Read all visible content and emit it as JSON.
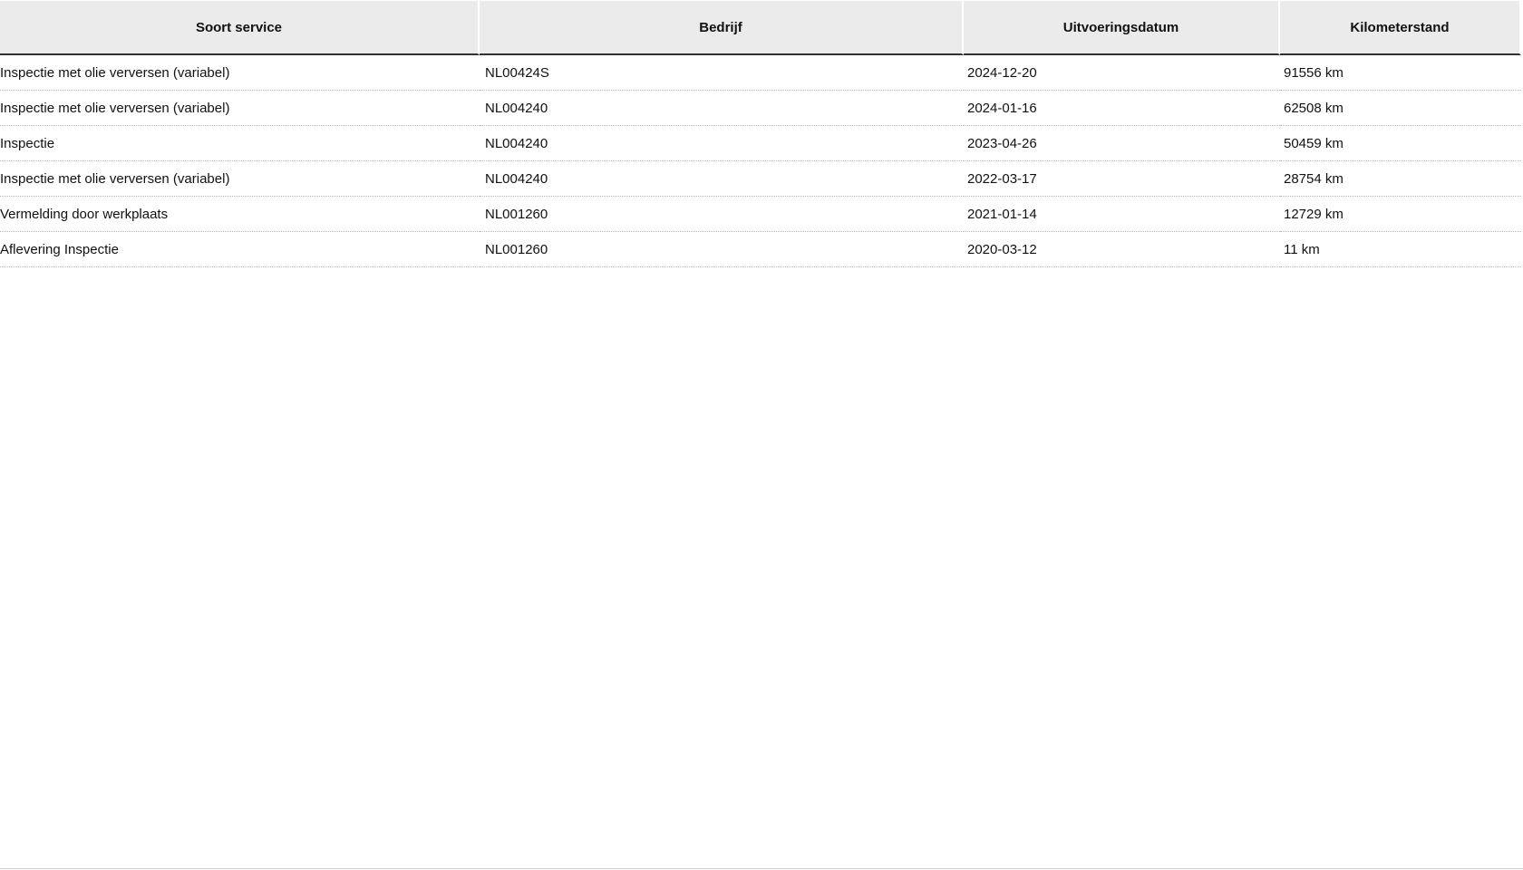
{
  "table": {
    "headers": [
      "Soort service",
      "Bedrijf",
      "Uitvoeringsdatum",
      "Kilometerstand"
    ],
    "rows": [
      [
        "Inspectie met olie verversen (variabel)",
        "NL00424S",
        "2024-12-20",
        "91556 km"
      ],
      [
        "Inspectie met olie verversen (variabel)",
        "NL004240",
        "2024-01-16",
        "62508 km"
      ],
      [
        "Inspectie",
        "NL004240",
        "2023-04-26",
        "50459 km"
      ],
      [
        "Inspectie met olie verversen (variabel)",
        "NL004240",
        "2022-03-17",
        "28754 km"
      ],
      [
        "Vermelding door werkplaats",
        "NL001260",
        "2021-01-14",
        "12729 km"
      ],
      [
        "Aflevering Inspectie",
        "NL001260",
        "2020-03-12",
        "11 km"
      ]
    ]
  }
}
